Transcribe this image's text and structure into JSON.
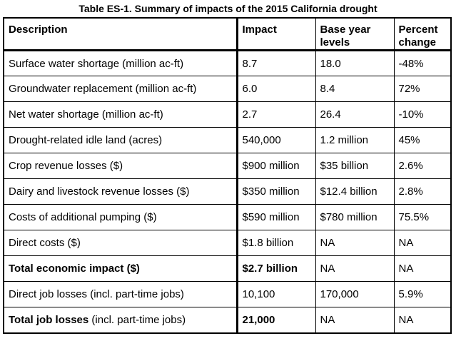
{
  "caption": "Table ES-1. Summary of impacts of the 2015 California drought",
  "headers": {
    "description": "Description",
    "impact": "Impact",
    "base_line1": "Base year",
    "base_line2": "levels",
    "percent_line1": "Percent",
    "percent_line2": "change"
  },
  "rows": [
    {
      "label": "Surface water shortage (million ac-ft)",
      "label_rest": "",
      "impact": "8.7",
      "base": "18.0",
      "percent": "-48%",
      "bold_label": false,
      "bold_impact": false
    },
    {
      "label": "Groundwater replacement (million ac-ft)",
      "label_rest": "",
      "impact": "6.0",
      "base": "8.4",
      "percent": "72%",
      "bold_label": false,
      "bold_impact": false
    },
    {
      "label": "Net water shortage (million ac-ft)",
      "label_rest": "",
      "impact": "2.7",
      "base": "26.4",
      "percent": "-10%",
      "bold_label": false,
      "bold_impact": false
    },
    {
      "label": "Drought-related idle land (acres)",
      "label_rest": "",
      "impact": "540,000",
      "base": "1.2 million",
      "percent": "45%",
      "bold_label": false,
      "bold_impact": false
    },
    {
      "label": "Crop revenue losses ($)",
      "label_rest": "",
      "impact": "$900 million",
      "base": "$35 billion",
      "percent": "2.6%",
      "bold_label": false,
      "bold_impact": false
    },
    {
      "label": "Dairy and livestock revenue losses ($)",
      "label_rest": "",
      "impact": "$350 million",
      "base": "$12.4 billion",
      "percent": "2.8%",
      "bold_label": false,
      "bold_impact": false
    },
    {
      "label": "Costs of additional pumping ($)",
      "label_rest": "",
      "impact": "$590 million",
      "base": "$780 million",
      "percent": "75.5%",
      "bold_label": false,
      "bold_impact": false
    },
    {
      "label": "Direct costs ($)",
      "label_rest": "",
      "impact": "$1.8 billion",
      "base": "NA",
      "percent": "NA",
      "bold_label": false,
      "bold_impact": false
    },
    {
      "label": "Total economic impact ($)",
      "label_rest": "",
      "impact": "$2.7 billion",
      "base": "NA",
      "percent": "NA",
      "bold_label": true,
      "bold_impact": true
    },
    {
      "label": "Direct job losses (incl. part-time jobs)",
      "label_rest": "",
      "impact": "10,100",
      "base": "170,000",
      "percent": "5.9%",
      "bold_label": false,
      "bold_impact": false
    },
    {
      "label": "Total job losses",
      "label_rest": " (incl. part-time jobs)",
      "impact": "21,000",
      "base": "NA",
      "percent": "NA",
      "bold_label": true,
      "bold_impact": true
    }
  ]
}
